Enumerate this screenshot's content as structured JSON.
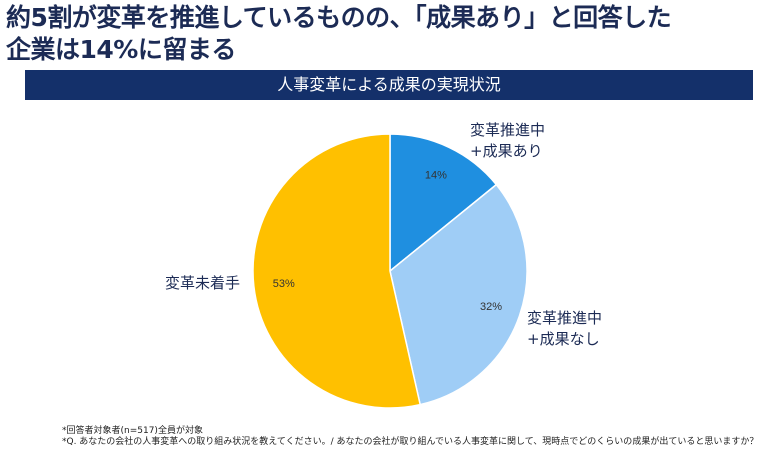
{
  "title_lines": [
    "約5割が変革を推進しているものの、「成果あり」と回答した",
    "企業は14%に留まる"
  ],
  "chart_data": {
    "type": "pie",
    "title": "人事変革による成果の実現状況",
    "start_angle": "top",
    "direction": "clockwise",
    "slices": [
      {
        "label_lines": [
          "変革推進中",
          "+成果あり"
        ],
        "value": 14,
        "data_label": "14%",
        "color": "#1f8fe0"
      },
      {
        "label_lines": [
          "変革推進中",
          "+成果なし"
        ],
        "value": 32,
        "data_label": "32%",
        "color": "#9fcdf6"
      },
      {
        "label_lines": [
          "変革未着手"
        ],
        "value": 53,
        "data_label": "53%",
        "color": "#ffc000"
      }
    ]
  },
  "footnotes": [
    "*回答者対象者(n=517)全員が対象",
    "*Q. あなたの会社の人事変革への取り組み状況を教えてください。/ あなたの会社が取り組んでいる人事変革に関して、現時点でどのくらいの成果が出ていると思いますか？"
  ]
}
